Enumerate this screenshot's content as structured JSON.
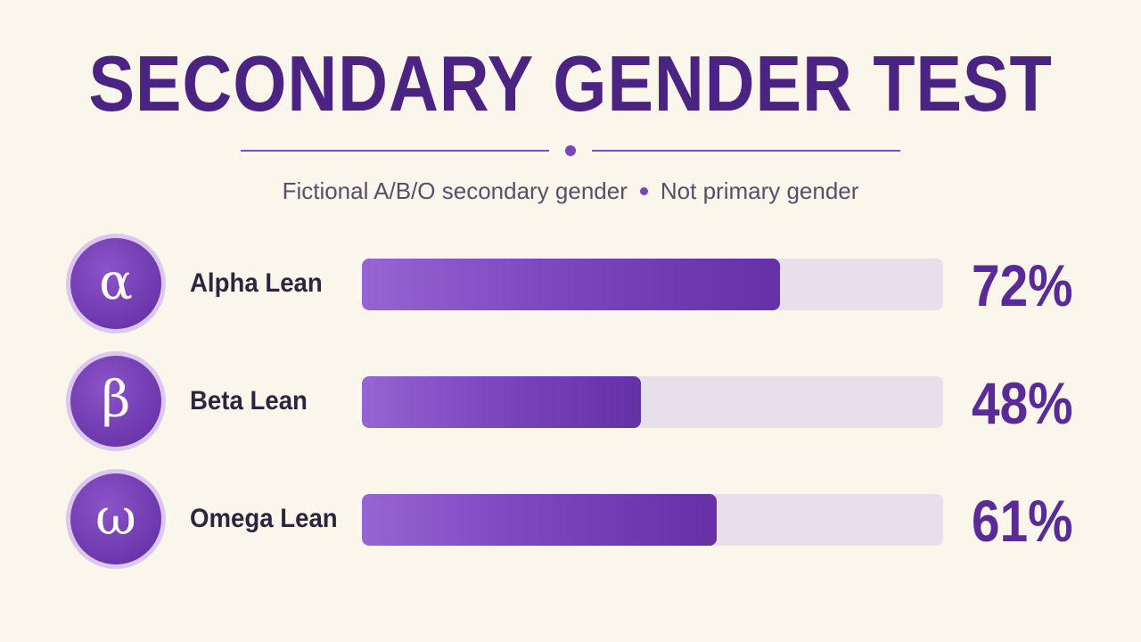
{
  "title": "SECONDARY GENDER TEST",
  "subtitle": {
    "left": "Fictional A/B/O secondary gender",
    "right": "Not primary gender"
  },
  "colors": {
    "background": "#fbf6ec",
    "title": "#4b2483",
    "bar_fill": "#7d47bf",
    "bar_track": "#e7e0ea",
    "percent_text": "#5a2a98"
  },
  "chart_data": {
    "type": "bar",
    "orientation": "horizontal",
    "title": "SECONDARY GENDER TEST",
    "categories": [
      "Alpha Lean",
      "Beta Lean",
      "Omega Lean"
    ],
    "symbols": [
      "α",
      "β",
      "ω"
    ],
    "values": [
      72,
      48,
      61
    ],
    "data_labels": [
      "72%",
      "48%",
      "61%"
    ],
    "xlim": [
      0,
      100
    ],
    "grid": false,
    "legend": "none"
  }
}
